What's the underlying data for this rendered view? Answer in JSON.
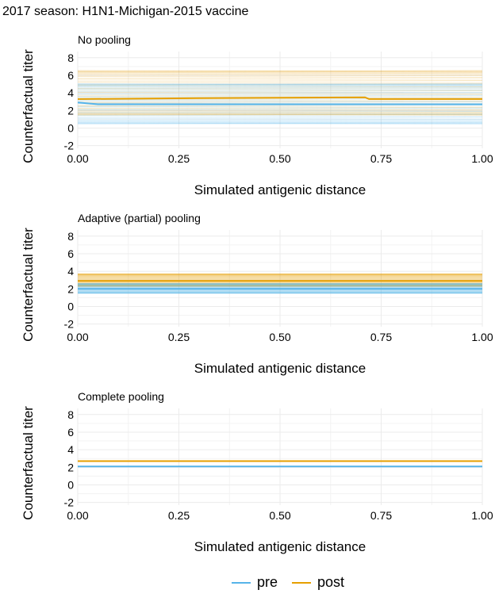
{
  "title": "2017 season: H1N1-Michigan-2015 vaccine",
  "colors": {
    "pre": "#56B4E9",
    "post": "#E69F00",
    "grid": "#ebebeb"
  },
  "legend": [
    {
      "label": "pre",
      "color": "#56B4E9"
    },
    {
      "label": "post",
      "color": "#E69F00"
    }
  ],
  "chart_data": [
    {
      "type": "line",
      "subtitle": "No pooling",
      "xlabel": "Simulated antigenic distance",
      "ylabel": "Counterfactual titer",
      "xlim": [
        0,
        1
      ],
      "ylim": [
        -2.3,
        8.7
      ],
      "x_ticks": [
        "0.00",
        "0.25",
        "0.50",
        "0.75",
        "1.00"
      ],
      "y_ticks": [
        "-2",
        "0",
        "2",
        "4",
        "6",
        "8"
      ],
      "grid": true,
      "series": [
        {
          "name": "pre",
          "x": [
            0,
            0.05,
            1
          ],
          "values": [
            2.9,
            2.7,
            2.7
          ]
        },
        {
          "name": "post",
          "x": [
            0,
            0.3,
            0.71,
            0.72,
            1
          ],
          "values": [
            3.3,
            3.4,
            3.5,
            3.3,
            3.3
          ]
        }
      ],
      "individual_range": {
        "pre": [
          0.5,
          5
        ],
        "post": [
          1.5,
          6.5
        ]
      }
    },
    {
      "type": "line",
      "subtitle": "Adaptive (partial) pooling",
      "xlabel": "Simulated antigenic distance",
      "ylabel": "Counterfactual titer",
      "xlim": [
        0,
        1
      ],
      "ylim": [
        -2.3,
        8.7
      ],
      "x_ticks": [
        "0.00",
        "0.25",
        "0.50",
        "0.75",
        "1.00"
      ],
      "y_ticks": [
        "-2",
        "0",
        "2",
        "4",
        "6",
        "8"
      ],
      "grid": true,
      "series": [
        {
          "name": "pre",
          "x": [
            0,
            1
          ],
          "values": [
            2.0,
            2.0
          ]
        },
        {
          "name": "post",
          "x": [
            0,
            1
          ],
          "values": [
            2.9,
            2.9
          ]
        }
      ],
      "individual_range": {
        "pre": [
          1.5,
          2.6
        ],
        "post": [
          2.3,
          3.7
        ]
      }
    },
    {
      "type": "line",
      "subtitle": "Complete pooling",
      "xlabel": "Simulated antigenic distance",
      "ylabel": "Counterfactual titer",
      "xlim": [
        0,
        1
      ],
      "ylim": [
        -2.3,
        8.7
      ],
      "x_ticks": [
        "0.00",
        "0.25",
        "0.50",
        "0.75",
        "1.00"
      ],
      "y_ticks": [
        "-2",
        "0",
        "2",
        "4",
        "6",
        "8"
      ],
      "grid": true,
      "series": [
        {
          "name": "pre",
          "x": [
            0,
            1
          ],
          "values": [
            2.1,
            2.1
          ]
        },
        {
          "name": "post",
          "x": [
            0,
            1
          ],
          "values": [
            2.7,
            2.7
          ]
        }
      ]
    }
  ]
}
